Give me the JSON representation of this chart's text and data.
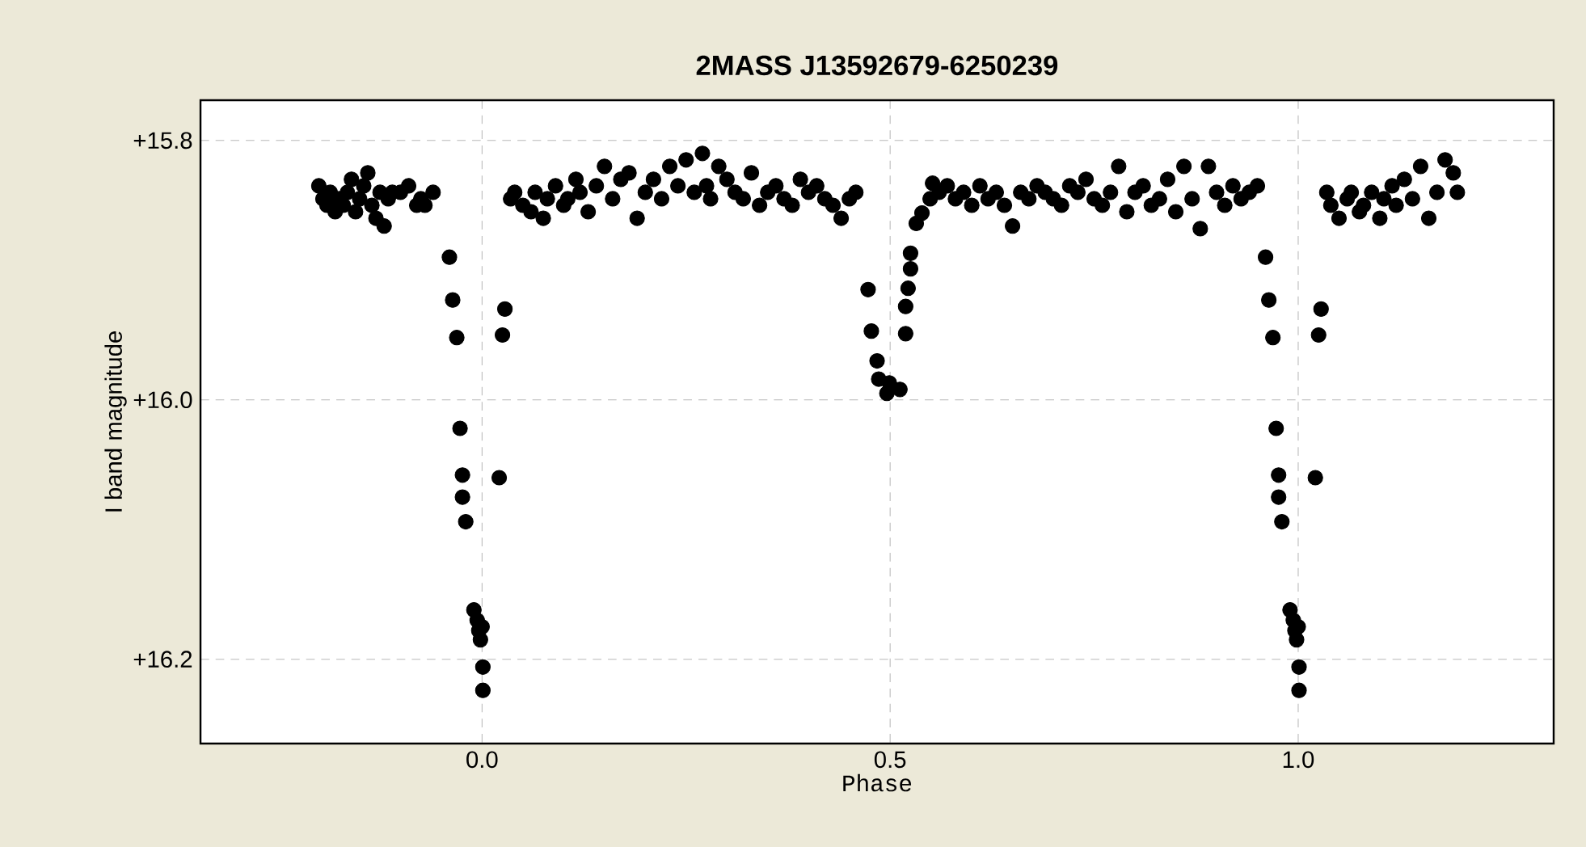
{
  "chart_data": {
    "type": "scatter",
    "title": "2MASS J13592679-6250239",
    "xlabel": "Phase",
    "ylabel": "I band magnitude",
    "xlim": [
      -0.345,
      1.313
    ],
    "ylim": [
      16.265,
      15.769
    ],
    "xticks": [
      {
        "value": 0,
        "label": "0.0"
      },
      {
        "value": 0.5,
        "label": "0.5"
      },
      {
        "value": 1,
        "label": "1.0"
      }
    ],
    "yticks": [
      {
        "value": 15.8,
        "label": "+15.8"
      },
      {
        "value": 16.0,
        "label": "+16.0"
      },
      {
        "value": 16.2,
        "label": "+16.2"
      }
    ],
    "grid": true,
    "marker": "circle",
    "series": [
      {
        "color": "#000000",
        "x": [
          -0.2,
          -0.195,
          -0.19,
          -0.186,
          -0.18,
          -0.175,
          -0.17,
          -0.165,
          -0.16,
          -0.155,
          -0.15,
          -0.145,
          -0.14,
          -0.135,
          -0.13,
          -0.125,
          -0.12,
          -0.115,
          -0.11,
          -0.1,
          -0.09,
          -0.08,
          -0.075,
          -0.07,
          -0.06,
          -0.04,
          -0.036,
          -0.031,
          -0.027,
          -0.024,
          -0.024,
          -0.02,
          -0.01,
          -0.006,
          -0.004,
          -0.002,
          0.0,
          0.001,
          0.001,
          0.028,
          0.025,
          0.021,
          0.035,
          0.04,
          0.05,
          0.06,
          0.065,
          0.075,
          0.08,
          0.09,
          0.1,
          0.105,
          0.115,
          0.12,
          0.13,
          0.14,
          0.15,
          0.16,
          0.17,
          0.18,
          0.19,
          0.2,
          0.21,
          0.22,
          0.23,
          0.24,
          0.25,
          0.26,
          0.27,
          0.275,
          0.28,
          0.29,
          0.3,
          0.31,
          0.32,
          0.33,
          0.34,
          0.35,
          0.36,
          0.37,
          0.38,
          0.39,
          0.4,
          0.41,
          0.42,
          0.43,
          0.44,
          0.45,
          0.458,
          0.473,
          0.477,
          0.484,
          0.486,
          0.496,
          0.499,
          0.512,
          0.519,
          0.519,
          0.522,
          0.525,
          0.525,
          0.532,
          0.539,
          0.549,
          0.552,
          0.56,
          0.57,
          0.58,
          0.59,
          0.6,
          0.61,
          0.62,
          0.63,
          0.64,
          0.65,
          0.66,
          0.67,
          0.68,
          0.69,
          0.7,
          0.71,
          0.72,
          0.73,
          0.74,
          0.75,
          0.76,
          0.77,
          0.78,
          0.79,
          0.8,
          0.81,
          0.82,
          0.83,
          0.84,
          0.85,
          0.86,
          0.87,
          0.88,
          0.89,
          0.9,
          0.91,
          0.92,
          0.93,
          0.94,
          0.95,
          0.96,
          0.964,
          0.969,
          0.973,
          0.976,
          0.976,
          0.98,
          0.99,
          0.994,
          0.996,
          0.998,
          1.0,
          1.001,
          1.001,
          1.028,
          1.025,
          1.021,
          1.035,
          1.04,
          1.05,
          1.06,
          1.065,
          1.075,
          1.08,
          1.09,
          1.1,
          1.105,
          1.115,
          1.12,
          1.13,
          1.14,
          1.15,
          1.16,
          1.17,
          1.18,
          1.19,
          1.195
        ],
        "values": [
          15.835,
          15.845,
          15.85,
          15.84,
          15.855,
          15.845,
          15.85,
          15.84,
          15.83,
          15.855,
          15.845,
          15.835,
          15.825,
          15.85,
          15.86,
          15.84,
          15.866,
          15.845,
          15.84,
          15.84,
          15.835,
          15.85,
          15.845,
          15.85,
          15.84,
          15.89,
          15.923,
          15.952,
          16.022,
          16.058,
          16.075,
          16.094,
          16.162,
          16.17,
          16.178,
          16.185,
          16.175,
          16.206,
          16.224,
          15.93,
          15.95,
          16.06,
          15.845,
          15.84,
          15.85,
          15.855,
          15.84,
          15.86,
          15.845,
          15.835,
          15.85,
          15.845,
          15.83,
          15.84,
          15.855,
          15.835,
          15.82,
          15.845,
          15.83,
          15.825,
          15.86,
          15.84,
          15.83,
          15.845,
          15.82,
          15.835,
          15.815,
          15.84,
          15.81,
          15.835,
          15.845,
          15.82,
          15.83,
          15.84,
          15.845,
          15.825,
          15.85,
          15.84,
          15.835,
          15.845,
          15.85,
          15.83,
          15.84,
          15.835,
          15.845,
          15.85,
          15.86,
          15.845,
          15.84,
          15.915,
          15.947,
          15.97,
          15.984,
          15.995,
          15.987,
          15.992,
          15.949,
          15.928,
          15.914,
          15.899,
          15.887,
          15.864,
          15.856,
          15.845,
          15.833,
          15.84,
          15.835,
          15.845,
          15.84,
          15.85,
          15.835,
          15.845,
          15.84,
          15.85,
          15.866,
          15.84,
          15.845,
          15.835,
          15.84,
          15.845,
          15.85,
          15.835,
          15.84,
          15.83,
          15.845,
          15.85,
          15.84,
          15.82,
          15.855,
          15.84,
          15.835,
          15.85,
          15.845,
          15.83,
          15.855,
          15.82,
          15.845,
          15.868,
          15.82,
          15.84,
          15.85,
          15.835,
          15.845,
          15.84,
          15.835,
          15.89,
          15.923,
          15.952,
          16.022,
          16.058,
          16.075,
          16.094,
          16.162,
          16.17,
          16.178,
          16.185,
          16.175,
          16.206,
          16.224,
          15.93,
          15.95,
          16.06,
          15.84,
          15.85,
          15.86,
          15.845,
          15.84,
          15.855,
          15.85,
          15.84,
          15.86,
          15.845,
          15.835,
          15.85,
          15.83,
          15.845,
          15.82,
          15.86,
          15.84,
          15.815,
          15.825,
          15.84
        ]
      }
    ]
  }
}
